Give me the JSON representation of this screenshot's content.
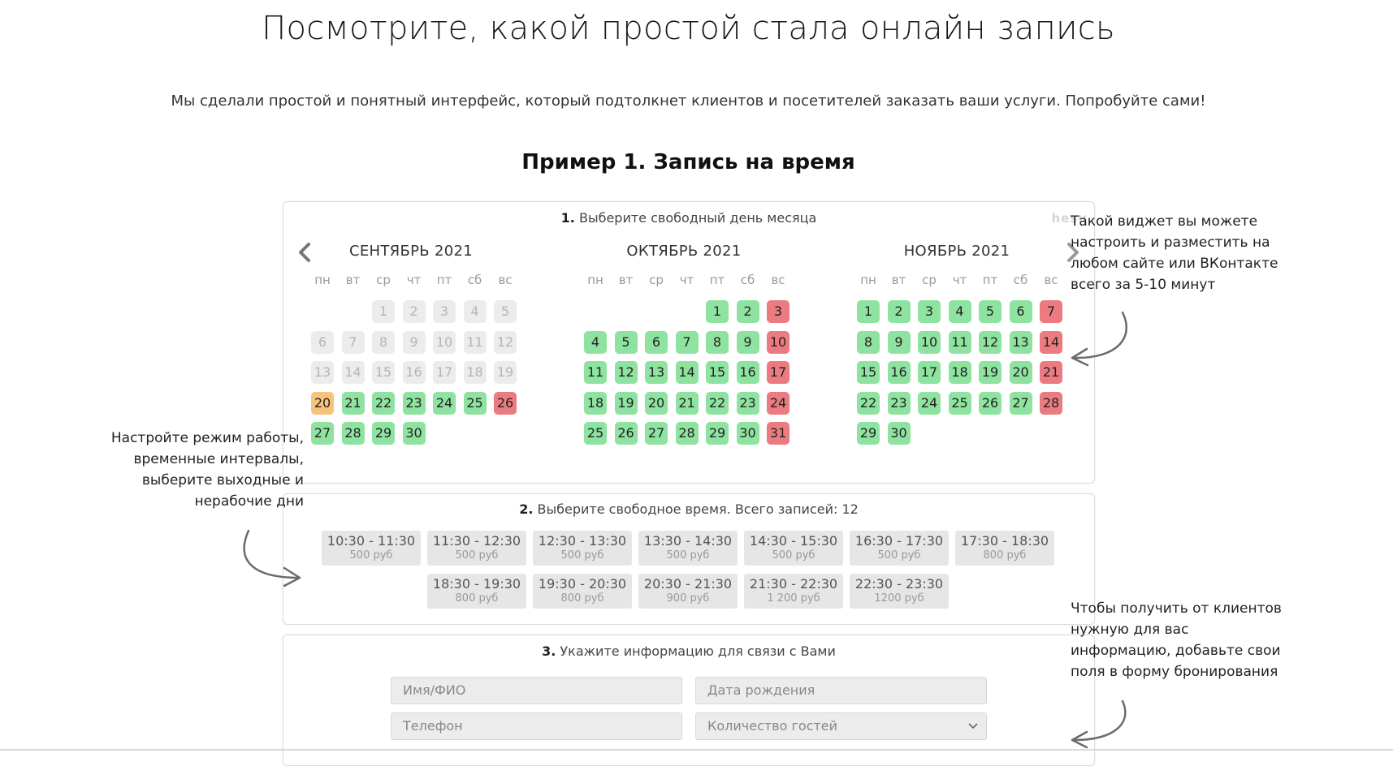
{
  "header": {
    "title": "Посмотрите, какой простой стала онлайн запись",
    "subtitle": "Мы сделали простой и понятный интерфейс, который подтолкнет клиентов и посетителей заказать ваши услуги. Попробуйте сами!",
    "example_title": "Пример 1. Запись на время"
  },
  "calendar": {
    "step_number": "1.",
    "step_text": "Выберите свободный день месяца",
    "logo_text": "hesu",
    "weekdays": [
      "пн",
      "вт",
      "ср",
      "чт",
      "пт",
      "сб",
      "вс"
    ],
    "colors": {
      "free": "#8ee3a0",
      "off": "#eb7b80",
      "today": "#f6c37a",
      "past": "#ececec"
    },
    "months": [
      {
        "title": "СЕНТЯБРЬ 2021",
        "offset": 2,
        "days": 30,
        "past_until": 19,
        "today": 20,
        "off": [
          26
        ]
      },
      {
        "title": "ОКТЯБРЬ 2021",
        "offset": 4,
        "days": 31,
        "past_until": 0,
        "today": 0,
        "off": [
          3,
          10,
          17,
          24,
          31
        ]
      },
      {
        "title": "НОЯБРЬ 2021",
        "offset": 0,
        "days": 30,
        "past_until": 0,
        "today": 0,
        "off": [
          7,
          14,
          21,
          28
        ]
      }
    ]
  },
  "time": {
    "step_number": "2.",
    "step_text": "Выберите свободное время. Всего записей: 12",
    "slots": [
      {
        "time": "10:30 - 11:30",
        "price": "500 руб"
      },
      {
        "time": "11:30 - 12:30",
        "price": "500 руб"
      },
      {
        "time": "12:30 - 13:30",
        "price": "500 руб"
      },
      {
        "time": "13:30 - 14:30",
        "price": "500 руб"
      },
      {
        "time": "14:30 - 15:30",
        "price": "500 руб"
      },
      {
        "time": "16:30 - 17:30",
        "price": "500 руб"
      },
      {
        "time": "17:30 - 18:30",
        "price": "800 руб"
      },
      {
        "time": "18:30 - 19:30",
        "price": "800 руб"
      },
      {
        "time": "19:30 - 20:30",
        "price": "800 руб"
      },
      {
        "time": "20:30 - 21:30",
        "price": "900 руб"
      },
      {
        "time": "21:30 - 22:30",
        "price": "1 200 руб"
      },
      {
        "time": "22:30 - 23:30",
        "price": "1200 руб"
      }
    ]
  },
  "form": {
    "step_number": "3.",
    "step_text": "Укажите информацию для связи с Вами",
    "name_placeholder": "Имя/ФИО",
    "birthdate_placeholder": "Дата рождения",
    "phone_placeholder": "Телефон",
    "guests_placeholder": "Количество гостей"
  },
  "annotations": {
    "widget_note": [
      "Такой виджет вы можете",
      "настроить и разместить на",
      "любом сайте или ВКонтакте",
      "всего за 5-10 минут"
    ],
    "schedule_note": [
      "Настройте режим работы,",
      "временные интервалы,",
      "выберите выходные и",
      "нерабочие дни"
    ],
    "fields_note": [
      "Чтобы получить от клиентов",
      "нужную для вас",
      "информацию, добавьте свои",
      "поля в форму бронирования"
    ]
  }
}
